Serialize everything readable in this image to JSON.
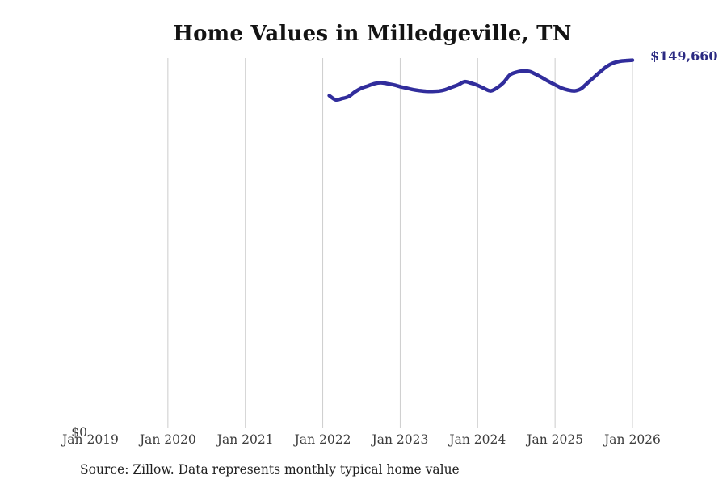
{
  "page": {
    "background": "#ffffff"
  },
  "chart": {
    "title": "Home Values in Milledgeville, TN",
    "y_zero_label": "$0",
    "current_value_label": "$149,660"
  },
  "footer": {
    "source_text": "Source: Zillow. Data represents monthly typical home value"
  },
  "chart_data": {
    "type": "line",
    "title": "Home Values in Milledgeville, TN",
    "xlabel": "",
    "ylabel": "",
    "ylim": [
      0,
      150500
    ],
    "grid": "vertical-only",
    "legend": "none",
    "line_color": "#312d9c",
    "label_color": "#2b2a82",
    "gridline_color": "#cccccc",
    "axis_text_color": "#3c3c3c",
    "current_value": 149660,
    "x_ticks": [
      {
        "label": "Jan 2019",
        "gridline": false
      },
      {
        "label": "Jan 2020",
        "gridline": true
      },
      {
        "label": "Jan 2021",
        "gridline": true
      },
      {
        "label": "Jan 2022",
        "gridline": true
      },
      {
        "label": "Jan 2023",
        "gridline": true
      },
      {
        "label": "Jan 2024",
        "gridline": true
      },
      {
        "label": "Jan 2025",
        "gridline": true
      },
      {
        "label": "Jan 2026",
        "gridline": true
      }
    ],
    "series": [
      {
        "name": "Monthly typical home value",
        "x": [
          "2022-02",
          "2022-03",
          "2022-04",
          "2022-05",
          "2022-06",
          "2022-07",
          "2022-08",
          "2022-09",
          "2022-10",
          "2022-11",
          "2022-12",
          "2023-01",
          "2023-02",
          "2023-03",
          "2023-04",
          "2023-05",
          "2023-06",
          "2023-07",
          "2023-08",
          "2023-09",
          "2023-10",
          "2023-11",
          "2023-12",
          "2024-01",
          "2024-02",
          "2024-03",
          "2024-04",
          "2024-05",
          "2024-06",
          "2024-07",
          "2024-08",
          "2024-09",
          "2024-10",
          "2024-11",
          "2024-12",
          "2025-01",
          "2025-02",
          "2025-03",
          "2025-04",
          "2025-05",
          "2025-06",
          "2025-07",
          "2025-08",
          "2025-09",
          "2025-10",
          "2025-11",
          "2025-12",
          "2026-01"
        ],
        "values": [
          135400,
          133700,
          134200,
          135000,
          136900,
          138400,
          139300,
          140200,
          140600,
          140200,
          139700,
          139000,
          138400,
          137800,
          137400,
          137150,
          137100,
          137250,
          137800,
          138800,
          139750,
          141000,
          140400,
          139500,
          138300,
          137300,
          138500,
          140600,
          143700,
          144800,
          145300,
          145100,
          144000,
          142600,
          141100,
          139750,
          138450,
          137650,
          137300,
          138100,
          140400,
          142700,
          145000,
          147100,
          148500,
          149200,
          149500,
          149660
        ]
      }
    ]
  }
}
